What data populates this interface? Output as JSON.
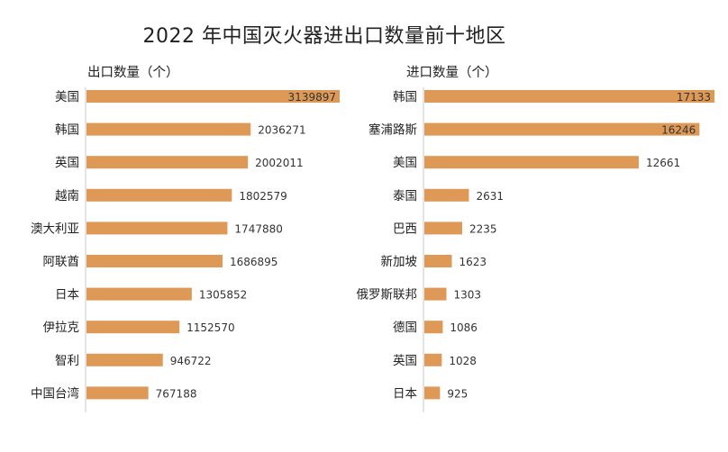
{
  "title": "2022 年中国灭火器进出口数量前十地区",
  "colors": {
    "bar": "#de9957",
    "axis": "#c8c8c8"
  },
  "chart_data": [
    {
      "type": "bar",
      "orientation": "horizontal",
      "title": "出口数量（个）",
      "categories": [
        "美国",
        "韩国",
        "英国",
        "越南",
        "澳大利亚",
        "阿联酋",
        "日本",
        "伊拉克",
        "智利",
        "中国台湾"
      ],
      "values": [
        3139897,
        2036271,
        2002011,
        1802579,
        1747880,
        1686895,
        1305852,
        1152570,
        946722,
        767188
      ],
      "labels": [
        "3139897",
        "2036271",
        "2002011",
        "1802579",
        "1747880",
        "1686895",
        "1305852",
        "1152570",
        "946722",
        "767188"
      ]
    },
    {
      "type": "bar",
      "orientation": "horizontal",
      "title": "进口数量（个）",
      "categories": [
        "韩国",
        "塞浦路斯",
        "美国",
        "泰国",
        "巴西",
        "新加坡",
        "俄罗斯联邦",
        "德国",
        "英国",
        "日本"
      ],
      "values": [
        17133,
        16246,
        12661,
        2631,
        2235,
        1623,
        1303,
        1086,
        1028,
        925
      ],
      "labels": [
        "17133",
        "16246",
        "12661",
        "2631",
        "2235",
        "1623",
        "1303",
        "1086",
        "1028",
        "925"
      ]
    }
  ]
}
